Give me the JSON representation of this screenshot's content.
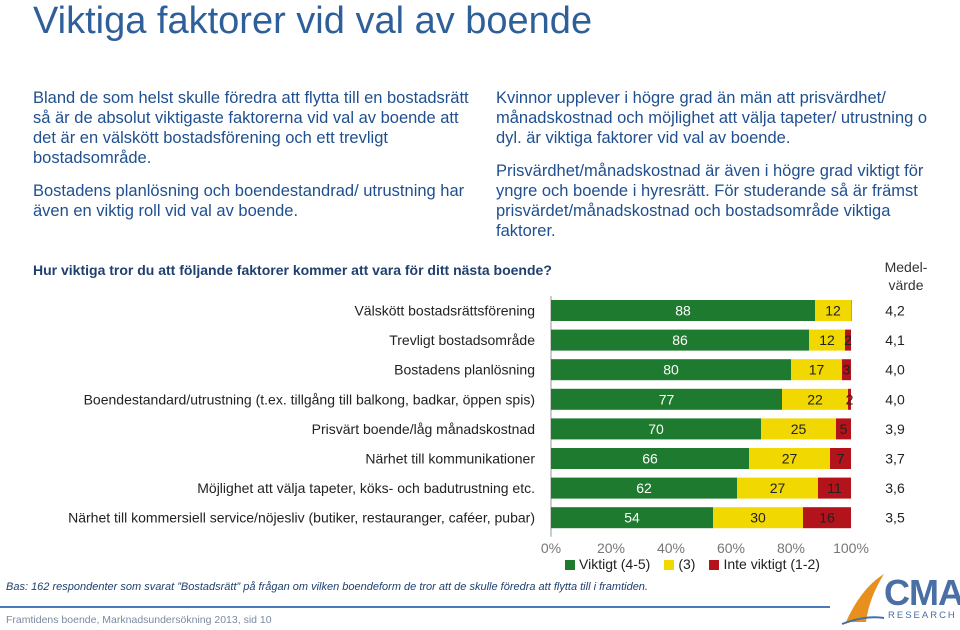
{
  "title": "Viktiga faktorer vid val av boende",
  "left_text": {
    "p1": "Bland de som helst skulle föredra att flytta till en bostadsrätt så är de absolut viktigaste faktorerna vid val av boende att det är en välskött bostadsförening och ett trevligt bostadsområde.",
    "p2": "Bostadens planlösning och boendestandrad/ utrustning har även en viktig roll vid val av boende."
  },
  "right_text": {
    "p1": "Kvinnor upplever i högre grad än män att prisvärdhet/ månadskostnad och möjlighet att välja tapeter/ utrustning o dyl. är viktiga faktorer vid val av boende.",
    "p2": "Prisvärdhet/månadskostnad är även i högre grad viktigt för yngre och boende i hyresrätt. För studerande så är främst prisvärdet/månadskostnad och bostadsområde viktiga faktorer."
  },
  "question": "Hur viktiga tror du att följande faktorer kommer att vara för ditt nästa boende?",
  "mean_header": "Medel-värde",
  "colors": {
    "green": "#1e7a2e",
    "yellow": "#f0d800",
    "red": "#b3131b",
    "title": "#2f5f99"
  },
  "chart_data": {
    "type": "bar",
    "stacked": true,
    "orientation": "horizontal",
    "categories": [
      "Välskött bostadsrättsförening",
      "Trevligt bostadsområde",
      "Bostadens planlösning",
      "Boendestandard/utrustning (t.ex. tillgång till balkong, badkar, öppen spis)",
      "Prisvärt boende/låg månadskostnad",
      "Närhet till kommunikationer",
      "Möjlighet att välja tapeter, köks- och badutrustning etc.",
      "Närhet till kommersiell service/nöjesliv (butiker, restauranger, caféer, pubar)"
    ],
    "series": [
      {
        "name": "Viktigt (4-5)",
        "values": [
          88,
          86,
          80,
          77,
          70,
          66,
          62,
          54
        ]
      },
      {
        "name": "(3)",
        "values": [
          12,
          12,
          17,
          22,
          25,
          27,
          27,
          30
        ]
      },
      {
        "name": "Inte viktigt (1-2)",
        "values": [
          1,
          2,
          3,
          2,
          5,
          7,
          11,
          16
        ]
      }
    ],
    "value_labels": [
      [
        "88",
        "86",
        "80",
        "77",
        "70",
        "66",
        "62",
        "54"
      ],
      [
        "12",
        "12",
        "17",
        "22",
        "25",
        "27",
        "27",
        "30"
      ],
      [
        "",
        "2",
        "3",
        "2",
        "5",
        "7",
        "11",
        "16"
      ]
    ],
    "mean_values": [
      "4,2",
      "4,1",
      "4,0",
      "4,0",
      "3,9",
      "3,7",
      "3,6",
      "3,5"
    ],
    "x_ticks": [
      "0%",
      "20%",
      "40%",
      "60%",
      "80%",
      "100%"
    ],
    "xlim": [
      0,
      100
    ],
    "legend_position": "bottom"
  },
  "legend": [
    "Viktigt (4-5)",
    "(3)",
    "Inte viktigt (1-2)"
  ],
  "footnote": "Bas: 162 respondenter som svarat ”Bostadsrätt” på frågan om vilken boendeform de tror att de skulle föredra att flytta till i framtiden.",
  "footer": "Framtidens boende, Marknadsundersökning 2013, sid 10",
  "logo": {
    "text": "CMA",
    "sub": "RESEARCH"
  }
}
